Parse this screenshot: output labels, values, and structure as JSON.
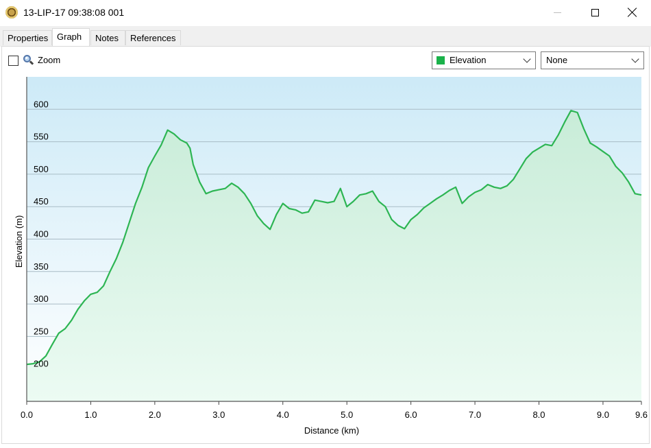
{
  "window": {
    "title": "13-LIP-17 09:38:08 001",
    "icon": "gps-track-icon"
  },
  "tabs": [
    {
      "label": "Properties",
      "active": false
    },
    {
      "label": "Graph",
      "active": true
    },
    {
      "label": "Notes",
      "active": false
    },
    {
      "label": "References",
      "active": false
    }
  ],
  "toolbar": {
    "zoom_label": "Zoom",
    "zoom_checked": false,
    "series_select": "Elevation",
    "series_color": "#1ab24a",
    "secondary_select": "None"
  },
  "chart_data": {
    "type": "area",
    "xlabel": "Distance  (km)",
    "ylabel": "Elevation (m)",
    "xlim": [
      0,
      9.6
    ],
    "ylim": [
      150,
      650
    ],
    "x_ticks": [
      "0.0",
      "1.0",
      "2.0",
      "3.0",
      "4.0",
      "5.0",
      "6.0",
      "7.0",
      "8.0",
      "9.0",
      "9.6"
    ],
    "x_tick_values": [
      0,
      1,
      2,
      3,
      4,
      5,
      6,
      7,
      8,
      9,
      9.6
    ],
    "y_ticks": [
      "200",
      "250",
      "300",
      "350",
      "400",
      "450",
      "500",
      "550",
      "600"
    ],
    "y_tick_values": [
      200,
      250,
      300,
      350,
      400,
      450,
      500,
      550,
      600
    ],
    "grid": true,
    "line_color": "#2db553",
    "series": [
      {
        "x": [
          0,
          0.1,
          0.2,
          0.3,
          0.4,
          0.5,
          0.6,
          0.7,
          0.8,
          0.9,
          1.0,
          1.1,
          1.2,
          1.3,
          1.4,
          1.5,
          1.6,
          1.7,
          1.8,
          1.9,
          2.0,
          2.1,
          2.2,
          2.3,
          2.4,
          2.5,
          2.55,
          2.6,
          2.7,
          2.8,
          2.9,
          3.0,
          3.1,
          3.2,
          3.3,
          3.4,
          3.5,
          3.6,
          3.7,
          3.8,
          3.9,
          4.0,
          4.1,
          4.2,
          4.3,
          4.4,
          4.5,
          4.6,
          4.7,
          4.8,
          4.9,
          5.0,
          5.1,
          5.2,
          5.3,
          5.4,
          5.5,
          5.6,
          5.7,
          5.8,
          5.9,
          6.0,
          6.1,
          6.2,
          6.3,
          6.4,
          6.5,
          6.6,
          6.7,
          6.8,
          6.9,
          7.0,
          7.1,
          7.2,
          7.3,
          7.4,
          7.5,
          7.6,
          7.7,
          7.8,
          7.9,
          8.0,
          8.1,
          8.2,
          8.3,
          8.4,
          8.5,
          8.6,
          8.7,
          8.8,
          8.9,
          9.0,
          9.1,
          9.2,
          9.3,
          9.4,
          9.5,
          9.6
        ],
        "y": [
          207,
          208,
          211,
          220,
          238,
          255,
          262,
          275,
          292,
          305,
          315,
          318,
          328,
          350,
          370,
          395,
          425,
          455,
          480,
          510,
          528,
          545,
          568,
          562,
          553,
          548,
          540,
          515,
          488,
          470,
          474,
          476,
          478,
          486,
          480,
          470,
          455,
          436,
          424,
          415,
          438,
          455,
          447,
          445,
          440,
          442,
          460,
          458,
          456,
          458,
          478,
          450,
          458,
          468,
          470,
          474,
          458,
          450,
          430,
          421,
          416,
          430,
          438,
          448,
          455,
          462,
          468,
          475,
          480,
          455,
          465,
          472,
          476,
          484,
          480,
          478,
          482,
          492,
          508,
          524,
          534,
          540,
          546,
          544,
          560,
          580,
          598,
          595,
          570,
          548,
          542,
          535,
          528,
          512,
          502,
          488,
          470,
          468
        ]
      }
    ]
  }
}
